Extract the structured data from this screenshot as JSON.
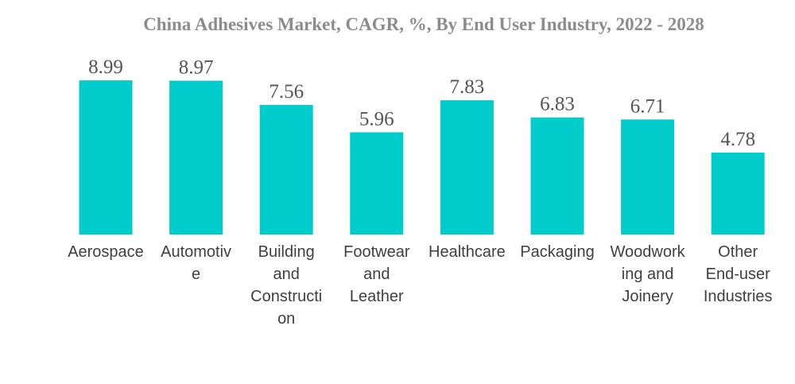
{
  "chart_data": {
    "type": "bar",
    "title": "China Adhesives Market, CAGR, %, By End User Industry, 2022 - 2028",
    "xlabel": "",
    "ylabel": "",
    "ylim": [
      0,
      10
    ],
    "grid": false,
    "legend": "none",
    "bar_color": "#00cccc",
    "categories": [
      "Aerospace",
      "Automotive",
      "Building and Construction",
      "Footwear and Leather",
      "Healthcare",
      "Packaging",
      "Woodworking and Joinery",
      "Other End-user Industries"
    ],
    "category_label_lines": [
      [
        "Aerospace"
      ],
      [
        "Automotiv",
        "e"
      ],
      [
        "Building",
        "and",
        "Constructi",
        "on"
      ],
      [
        "Footwear",
        "and",
        "Leather"
      ],
      [
        "Healthcare"
      ],
      [
        "Packaging"
      ],
      [
        "Woodwork",
        "ing and",
        "Joinery"
      ],
      [
        "Other",
        "End-user",
        "Industries"
      ]
    ],
    "values": [
      8.99,
      8.97,
      7.56,
      5.96,
      7.83,
      6.83,
      6.71,
      4.78
    ],
    "value_labels": [
      "8.99",
      "8.97",
      "7.56",
      "5.96",
      "7.83",
      "6.83",
      "6.71",
      "4.78"
    ]
  }
}
